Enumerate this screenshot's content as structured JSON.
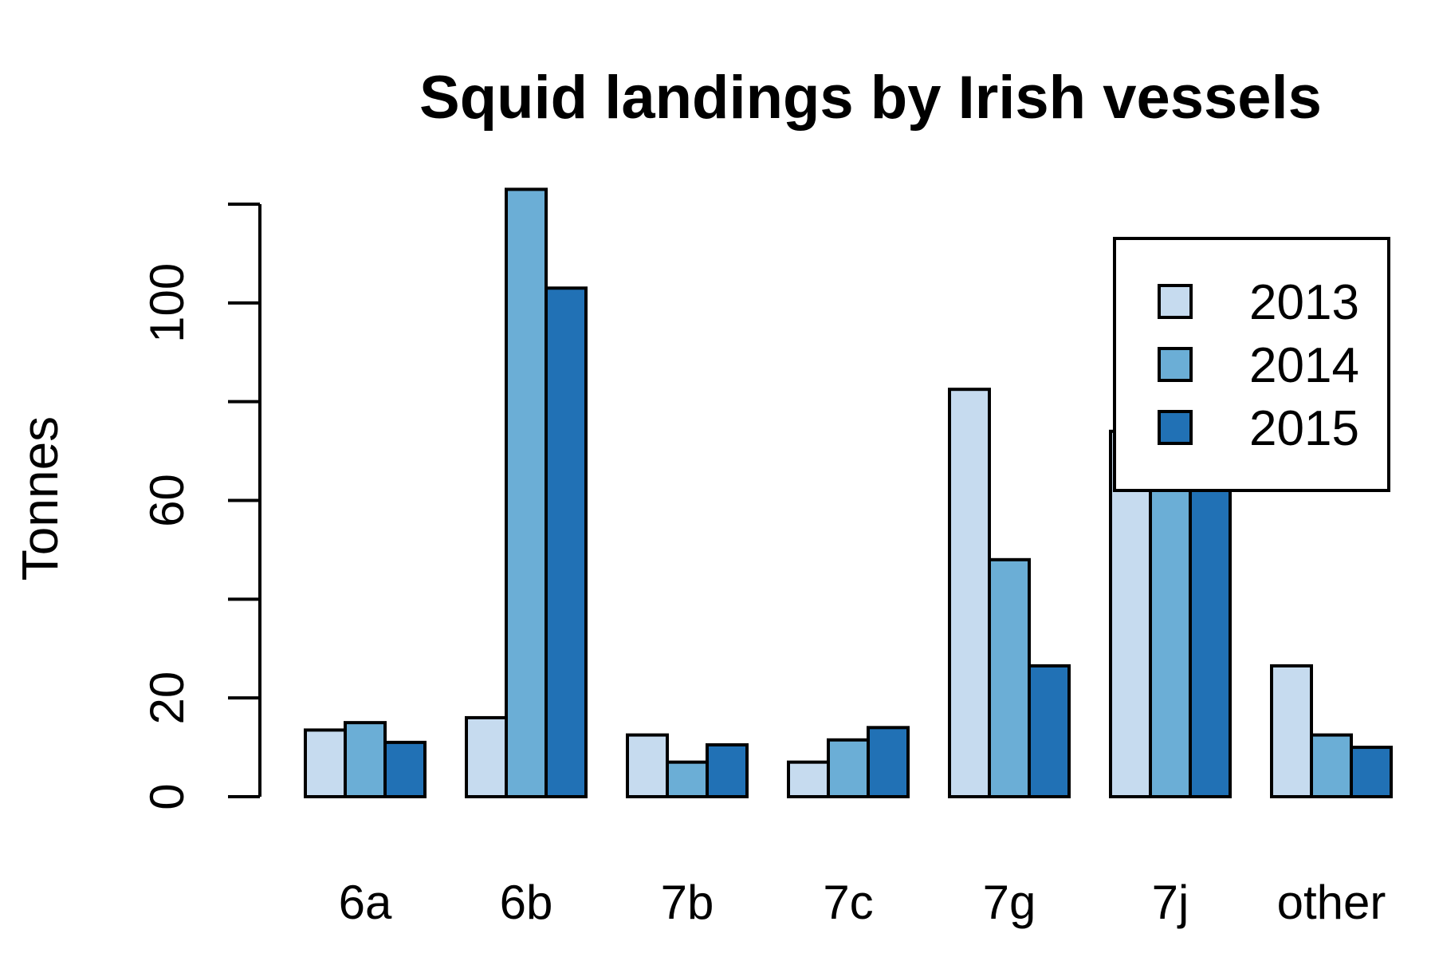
{
  "chart_data": {
    "type": "bar",
    "title": "Squid landings by Irish vessels",
    "xlabel": "",
    "ylabel": "Tonnes",
    "categories": [
      "6a",
      "6b",
      "7b",
      "7c",
      "7g",
      "7j",
      "other"
    ],
    "series": [
      {
        "name": "2013",
        "color": "#c6dbef",
        "values": [
          13.5,
          16,
          12.5,
          7,
          82.5,
          74,
          26.5
        ]
      },
      {
        "name": "2014",
        "color": "#6baed6",
        "values": [
          15,
          123,
          7,
          11.5,
          48,
          74,
          12.5
        ]
      },
      {
        "name": "2015",
        "color": "#2171b5",
        "values": [
          11,
          103,
          10.5,
          14,
          26.5,
          74,
          10
        ]
      }
    ],
    "ylim": [
      0,
      120
    ],
    "yticks": [
      0,
      20,
      40,
      60,
      80,
      100,
      120
    ],
    "ytick_labels": [
      "0",
      "20",
      "",
      "60",
      "",
      "100",
      ""
    ],
    "grid": false,
    "legend": {
      "position": "top-right",
      "entries": [
        "2013",
        "2014",
        "2015"
      ]
    }
  }
}
